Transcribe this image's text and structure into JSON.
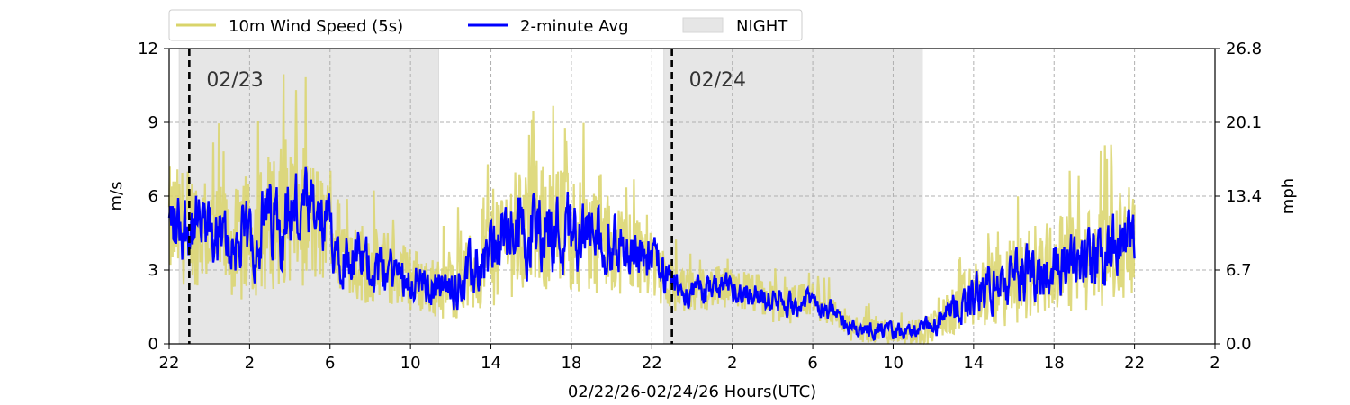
{
  "chart_data": {
    "type": "line",
    "xlabel": "02/22/26-02/24/26  Hours(UTC)",
    "ylabel_left": "m/s",
    "ylabel_right": "mph",
    "ylim": [
      0,
      12
    ],
    "xlim_hours_from_start": [
      0,
      52
    ],
    "x_start_label": "02/22 22:00 UTC",
    "x_tick_labels": [
      "22",
      "2",
      "6",
      "10",
      "14",
      "18",
      "22",
      "2",
      "6",
      "10",
      "14",
      "18",
      "22",
      "2"
    ],
    "y_ticks_left": [
      "0",
      "3",
      "6",
      "9",
      "12"
    ],
    "y_ticks_right": [
      "0.0",
      "6.7",
      "13.4",
      "20.1",
      "26.8"
    ],
    "grid": true,
    "legend": {
      "placement": "top-center-outside",
      "entries": [
        "10m Wind Speed (5s)",
        "2-minute Avg",
        "NIGHT"
      ]
    },
    "night_periods_hours_from_start": [
      [
        0.5,
        13.4
      ],
      [
        24.6,
        37.45
      ]
    ],
    "date_markers": [
      {
        "hour": 1.0,
        "label": "02/23"
      },
      {
        "hour": 25.0,
        "label": "02/24"
      }
    ],
    "colors": {
      "wind_5s": "#d9d46a",
      "avg_2min": "#0000ff",
      "night": "#e6e6e6",
      "date_line": "#000000"
    },
    "series": [
      {
        "name": "2-minute Avg",
        "hours_from_start": [
          0,
          1,
          2,
          3,
          4,
          5,
          6,
          7,
          8,
          9,
          10,
          11,
          12,
          13,
          14,
          15,
          16,
          17,
          18,
          19,
          20,
          21,
          22,
          23,
          24,
          25,
          26,
          27,
          28,
          29,
          30,
          31,
          32,
          33,
          34,
          35,
          36,
          37,
          38,
          39,
          40,
          41,
          42,
          43,
          44,
          45,
          46,
          47,
          48
        ],
        "values": [
          4.8,
          4.8,
          4.5,
          4.0,
          4.2,
          5.0,
          5.5,
          5.0,
          4.5,
          3.5,
          3.2,
          3.0,
          2.7,
          2.3,
          2.3,
          2.8,
          3.8,
          4.5,
          4.8,
          4.6,
          4.6,
          4.3,
          4.0,
          3.8,
          3.5,
          2.3,
          2.1,
          2.3,
          2.2,
          2.1,
          1.7,
          1.6,
          1.8,
          1.3,
          0.6,
          0.6,
          0.5,
          0.5,
          0.7,
          1.3,
          2.0,
          2.3,
          2.5,
          3.0,
          3.2,
          3.3,
          3.5,
          3.8,
          4.3
        ]
      },
      {
        "name": "10m Wind Speed (5s)",
        "hours_from_start": [
          0,
          1,
          2,
          3,
          4,
          5,
          6,
          7,
          8,
          9,
          10,
          11,
          12,
          13,
          14,
          15,
          16,
          17,
          18,
          19,
          20,
          21,
          22,
          23,
          24,
          25,
          26,
          27,
          28,
          29,
          30,
          31,
          32,
          33,
          34,
          35,
          36,
          37,
          38,
          39,
          40,
          41,
          42,
          43,
          44,
          45,
          46,
          47,
          48
        ],
        "values": [
          4.8,
          4.8,
          4.5,
          4.0,
          4.2,
          5.0,
          5.5,
          5.0,
          4.5,
          3.5,
          3.2,
          3.0,
          2.7,
          2.3,
          2.3,
          2.8,
          3.8,
          4.5,
          4.8,
          4.6,
          4.6,
          4.3,
          4.0,
          3.8,
          3.5,
          2.3,
          2.1,
          2.3,
          2.2,
          2.1,
          1.7,
          1.6,
          1.8,
          1.3,
          0.6,
          0.6,
          0.5,
          0.5,
          0.7,
          1.3,
          2.0,
          2.3,
          2.5,
          3.0,
          3.2,
          3.3,
          3.5,
          3.8,
          4.3
        ],
        "spread": [
          2.2,
          2.2,
          2.0,
          2.0,
          2.2,
          2.6,
          2.8,
          2.5,
          2.0,
          1.6,
          1.5,
          1.4,
          1.2,
          1.1,
          1.2,
          1.6,
          2.2,
          2.4,
          2.5,
          2.4,
          2.3,
          2.1,
          1.8,
          1.6,
          1.5,
          0.9,
          0.8,
          0.8,
          0.8,
          0.8,
          0.8,
          0.7,
          0.7,
          0.6,
          0.5,
          0.5,
          0.5,
          0.5,
          0.6,
          1.0,
          1.3,
          1.5,
          1.7,
          1.8,
          1.8,
          1.8,
          1.9,
          2.0,
          2.0
        ]
      }
    ]
  }
}
